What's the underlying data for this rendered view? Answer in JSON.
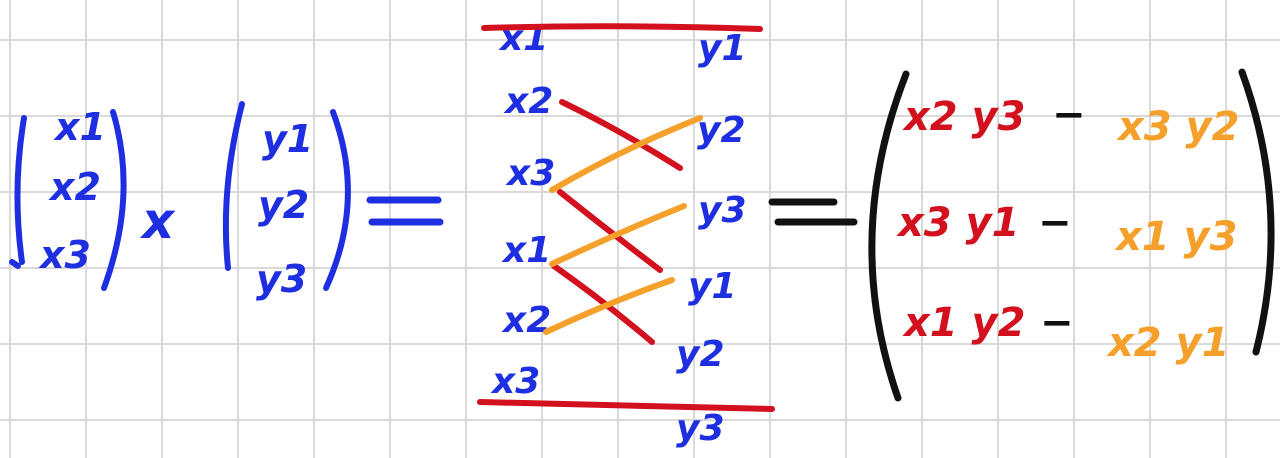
{
  "colors": {
    "blue": "#1d2fe0",
    "red": "#d2101e",
    "orange": "#f5a02a",
    "black": "#111111",
    "grid": "#d9d9d9"
  },
  "operation": {
    "cross": "x",
    "equals": "=",
    "minus": "−"
  },
  "vector_x": {
    "c1": "x1",
    "c2": "x2",
    "c3": "x3"
  },
  "vector_y": {
    "c1": "y1",
    "c2": "y2",
    "c3": "y3"
  },
  "scheme": {
    "left": [
      "x1",
      "x2",
      "x3",
      "x1",
      "x2",
      "x3"
    ],
    "right": [
      "y1",
      "y2",
      "y3",
      "y1",
      "y2",
      "y3"
    ]
  },
  "result": [
    {
      "pos": "x2 y3",
      "neg": "x3 y2"
    },
    {
      "pos": "x3 y1",
      "neg": "x1 y3"
    },
    {
      "pos": "x1 y2",
      "neg": "x2 y1"
    }
  ]
}
